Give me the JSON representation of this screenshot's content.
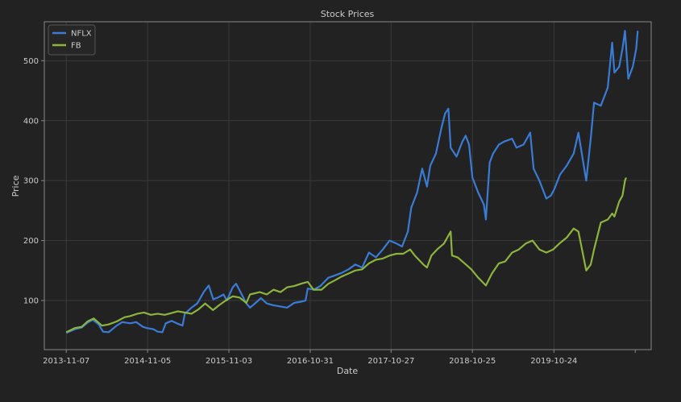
{
  "chart_data": {
    "type": "line",
    "title": "Stock Prices",
    "xlabel": "Date",
    "ylabel": "Price",
    "x_tick_labels": [
      "2013-11-07",
      "2014-11-05",
      "2015-11-03",
      "2016-10-31",
      "2017-10-27",
      "2018-10-25",
      "2019-10-24"
    ],
    "xlim": [
      "2013-08-01",
      "2020-12-31"
    ],
    "y_ticks": [
      100,
      200,
      300,
      400,
      500
    ],
    "ylim": [
      18,
      565
    ],
    "grid": true,
    "legend_position": "top-left",
    "colors": {
      "background": "#222222",
      "axes": "#888888",
      "grid": "#3a3a3a",
      "text": "#cccccc"
    },
    "series": [
      {
        "name": "NFLX",
        "color": "#3a7bd5",
        "points": [
          [
            "2013-11-07",
            46
          ],
          [
            "2013-12-15",
            52
          ],
          [
            "2014-01-15",
            55
          ],
          [
            "2014-02-10",
            63
          ],
          [
            "2014-03-05",
            68
          ],
          [
            "2014-04-01",
            60
          ],
          [
            "2014-04-20",
            48
          ],
          [
            "2014-05-15",
            47
          ],
          [
            "2014-06-20",
            58
          ],
          [
            "2014-07-15",
            64
          ],
          [
            "2014-08-20",
            62
          ],
          [
            "2014-09-15",
            64
          ],
          [
            "2014-10-15",
            56
          ],
          [
            "2014-11-01",
            54
          ],
          [
            "2014-12-01",
            52
          ],
          [
            "2014-12-20",
            48
          ],
          [
            "2015-01-10",
            47
          ],
          [
            "2015-01-25",
            62
          ],
          [
            "2015-02-20",
            66
          ],
          [
            "2015-03-15",
            62
          ],
          [
            "2015-04-10",
            58
          ],
          [
            "2015-04-20",
            78
          ],
          [
            "2015-05-20",
            88
          ],
          [
            "2015-06-15",
            95
          ],
          [
            "2015-07-15",
            115
          ],
          [
            "2015-08-05",
            125
          ],
          [
            "2015-08-25",
            102
          ],
          [
            "2015-09-15",
            105
          ],
          [
            "2015-10-10",
            110
          ],
          [
            "2015-10-25",
            100
          ],
          [
            "2015-11-20",
            122
          ],
          [
            "2015-12-05",
            128
          ],
          [
            "2015-12-25",
            114
          ],
          [
            "2016-01-20",
            95
          ],
          [
            "2016-02-05",
            88
          ],
          [
            "2016-03-01",
            96
          ],
          [
            "2016-03-25",
            104
          ],
          [
            "2016-04-20",
            95
          ],
          [
            "2016-05-20",
            92
          ],
          [
            "2016-06-20",
            90
          ],
          [
            "2016-07-20",
            88
          ],
          [
            "2016-08-20",
            96
          ],
          [
            "2016-09-20",
            98
          ],
          [
            "2016-10-10",
            100
          ],
          [
            "2016-10-20",
            120
          ],
          [
            "2016-11-15",
            118
          ],
          [
            "2016-12-15",
            124
          ],
          [
            "2017-01-20",
            138
          ],
          [
            "2017-02-20",
            142
          ],
          [
            "2017-03-20",
            146
          ],
          [
            "2017-04-20",
            152
          ],
          [
            "2017-05-20",
            160
          ],
          [
            "2017-06-20",
            155
          ],
          [
            "2017-07-20",
            180
          ],
          [
            "2017-08-20",
            172
          ],
          [
            "2017-09-20",
            185
          ],
          [
            "2017-10-20",
            200
          ],
          [
            "2017-11-20",
            195
          ],
          [
            "2017-12-15",
            190
          ],
          [
            "2018-01-10",
            215
          ],
          [
            "2018-01-25",
            255
          ],
          [
            "2018-02-20",
            280
          ],
          [
            "2018-03-15",
            320
          ],
          [
            "2018-04-05",
            290
          ],
          [
            "2018-04-20",
            325
          ],
          [
            "2018-05-15",
            345
          ],
          [
            "2018-06-10",
            390
          ],
          [
            "2018-06-25",
            412
          ],
          [
            "2018-07-10",
            420
          ],
          [
            "2018-07-20",
            355
          ],
          [
            "2018-08-15",
            340
          ],
          [
            "2018-09-10",
            365
          ],
          [
            "2018-09-25",
            375
          ],
          [
            "2018-10-10",
            360
          ],
          [
            "2018-10-25",
            305
          ],
          [
            "2018-11-20",
            280
          ],
          [
            "2018-12-15",
            260
          ],
          [
            "2018-12-24",
            235
          ],
          [
            "2019-01-10",
            330
          ],
          [
            "2019-01-25",
            345
          ],
          [
            "2019-02-20",
            360
          ],
          [
            "2019-03-15",
            365
          ],
          [
            "2019-04-20",
            370
          ],
          [
            "2019-05-10",
            355
          ],
          [
            "2019-06-10",
            360
          ],
          [
            "2019-07-10",
            380
          ],
          [
            "2019-07-25",
            320
          ],
          [
            "2019-08-20",
            300
          ],
          [
            "2019-09-20",
            270
          ],
          [
            "2019-10-10",
            275
          ],
          [
            "2019-10-25",
            285
          ],
          [
            "2019-11-20",
            310
          ],
          [
            "2019-12-20",
            325
          ],
          [
            "2020-01-20",
            345
          ],
          [
            "2020-02-10",
            380
          ],
          [
            "2020-03-16",
            300
          ],
          [
            "2020-04-05",
            370
          ],
          [
            "2020-04-20",
            430
          ],
          [
            "2020-05-20",
            425
          ],
          [
            "2020-06-20",
            455
          ],
          [
            "2020-07-10",
            530
          ],
          [
            "2020-07-20",
            480
          ],
          [
            "2020-08-10",
            490
          ],
          [
            "2020-08-25",
            520
          ],
          [
            "2020-09-05",
            550
          ],
          [
            "2020-09-20",
            470
          ],
          [
            "2020-10-10",
            490
          ],
          [
            "2020-10-25",
            520
          ],
          [
            "2020-11-01",
            550
          ]
        ]
      },
      {
        "name": "FB",
        "color": "#8db43c",
        "points": [
          [
            "2013-11-07",
            47
          ],
          [
            "2013-12-15",
            54
          ],
          [
            "2014-01-15",
            56
          ],
          [
            "2014-02-10",
            65
          ],
          [
            "2014-03-10",
            70
          ],
          [
            "2014-04-15",
            58
          ],
          [
            "2014-05-15",
            60
          ],
          [
            "2014-06-20",
            65
          ],
          [
            "2014-07-25",
            72
          ],
          [
            "2014-08-20",
            74
          ],
          [
            "2014-09-20",
            78
          ],
          [
            "2014-10-20",
            80
          ],
          [
            "2014-11-20",
            76
          ],
          [
            "2014-12-20",
            78
          ],
          [
            "2015-01-20",
            76
          ],
          [
            "2015-02-20",
            79
          ],
          [
            "2015-03-20",
            82
          ],
          [
            "2015-04-20",
            80
          ],
          [
            "2015-05-20",
            78
          ],
          [
            "2015-06-20",
            85
          ],
          [
            "2015-07-20",
            95
          ],
          [
            "2015-08-24",
            84
          ],
          [
            "2015-09-20",
            92
          ],
          [
            "2015-10-20",
            100
          ],
          [
            "2015-11-20",
            107
          ],
          [
            "2015-12-20",
            105
          ],
          [
            "2016-01-20",
            96
          ],
          [
            "2016-02-05",
            110
          ],
          [
            "2016-03-20",
            114
          ],
          [
            "2016-04-20",
            110
          ],
          [
            "2016-05-20",
            118
          ],
          [
            "2016-06-20",
            114
          ],
          [
            "2016-07-20",
            122
          ],
          [
            "2016-08-20",
            124
          ],
          [
            "2016-09-20",
            128
          ],
          [
            "2016-10-20",
            131
          ],
          [
            "2016-11-15",
            118
          ],
          [
            "2016-12-20",
            118
          ],
          [
            "2017-01-20",
            128
          ],
          [
            "2017-02-20",
            134
          ],
          [
            "2017-03-20",
            140
          ],
          [
            "2017-04-20",
            145
          ],
          [
            "2017-05-20",
            150
          ],
          [
            "2017-06-20",
            152
          ],
          [
            "2017-07-20",
            162
          ],
          [
            "2017-08-20",
            168
          ],
          [
            "2017-09-20",
            170
          ],
          [
            "2017-10-20",
            175
          ],
          [
            "2017-11-20",
            178
          ],
          [
            "2017-12-20",
            178
          ],
          [
            "2018-01-20",
            185
          ],
          [
            "2018-02-10",
            175
          ],
          [
            "2018-03-20",
            160
          ],
          [
            "2018-04-05",
            155
          ],
          [
            "2018-04-25",
            175
          ],
          [
            "2018-05-20",
            185
          ],
          [
            "2018-06-20",
            195
          ],
          [
            "2018-07-20",
            215
          ],
          [
            "2018-07-26",
            175
          ],
          [
            "2018-08-20",
            172
          ],
          [
            "2018-09-20",
            162
          ],
          [
            "2018-10-20",
            152
          ],
          [
            "2018-11-20",
            138
          ],
          [
            "2018-12-24",
            125
          ],
          [
            "2019-01-20",
            145
          ],
          [
            "2019-02-20",
            162
          ],
          [
            "2019-03-20",
            165
          ],
          [
            "2019-04-20",
            180
          ],
          [
            "2019-05-20",
            185
          ],
          [
            "2019-06-20",
            195
          ],
          [
            "2019-07-20",
            200
          ],
          [
            "2019-08-20",
            185
          ],
          [
            "2019-09-20",
            180
          ],
          [
            "2019-10-20",
            185
          ],
          [
            "2019-11-20",
            196
          ],
          [
            "2019-12-20",
            205
          ],
          [
            "2020-01-20",
            220
          ],
          [
            "2020-02-10",
            215
          ],
          [
            "2020-03-16",
            150
          ],
          [
            "2020-04-05",
            160
          ],
          [
            "2020-04-20",
            185
          ],
          [
            "2020-05-20",
            230
          ],
          [
            "2020-06-20",
            235
          ],
          [
            "2020-07-10",
            245
          ],
          [
            "2020-07-20",
            240
          ],
          [
            "2020-08-10",
            265
          ],
          [
            "2020-08-25",
            275
          ],
          [
            "2020-09-05",
            300
          ],
          [
            "2020-09-10",
            305
          ]
        ]
      }
    ]
  }
}
